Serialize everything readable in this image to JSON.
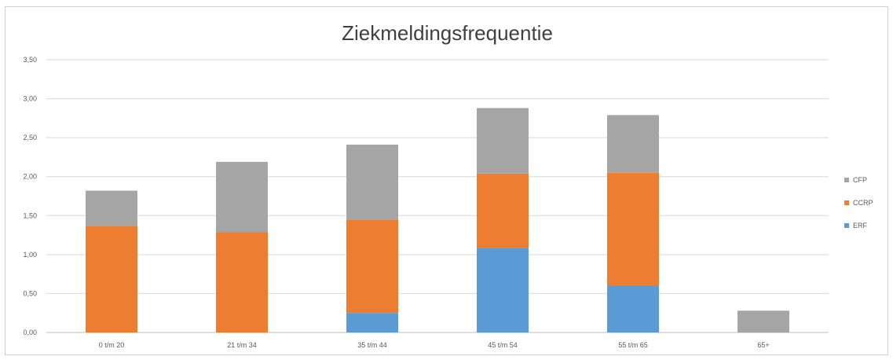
{
  "chart_data": {
    "type": "bar",
    "stacked": true,
    "title": "Ziekmeldingsfrequentie",
    "xlabel": "",
    "ylabel": "",
    "categories": [
      "0 t/m 20",
      "21 t/m 34",
      "35 t/m 44",
      "45 t/m 54",
      "55 t/m 65",
      "65+"
    ],
    "y_ticks": [
      "0,00",
      "0,50",
      "1,00",
      "1,50",
      "2,00",
      "2,50",
      "3,00",
      "3,50"
    ],
    "ylim": [
      0,
      3.5
    ],
    "grid": true,
    "legend_position": "right",
    "series": [
      {
        "name": "ERF",
        "color": "#5b9bd5",
        "values": [
          0,
          0,
          0.25,
          1.08,
          0.6,
          0
        ]
      },
      {
        "name": "CCRP",
        "color": "#ed7d31",
        "values": [
          1.37,
          1.29,
          1.2,
          0.96,
          1.45,
          0
        ]
      },
      {
        "name": "CFP",
        "color": "#a5a5a5",
        "values": [
          0.45,
          0.9,
          0.96,
          0.84,
          0.74,
          0.28
        ]
      }
    ]
  }
}
